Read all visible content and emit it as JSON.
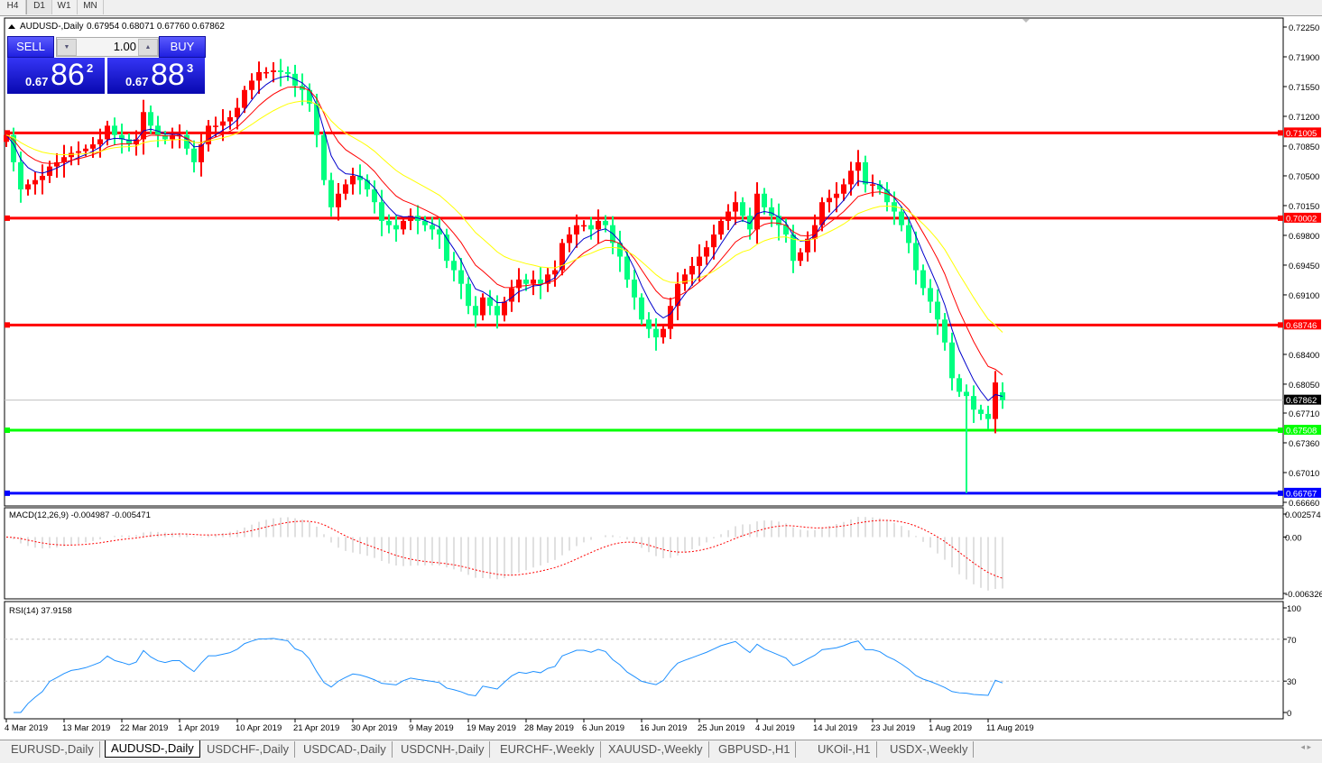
{
  "timeframes": [
    "H4",
    "D1",
    "W1",
    "MN"
  ],
  "active_timeframe": "D1",
  "header": {
    "symbol": "AUDUSD-,Daily",
    "ohlc": "0.67954 0.68071 0.67760 0.67862"
  },
  "trade_panel": {
    "sell_label": "SELL",
    "buy_label": "BUY",
    "lot": "1.00",
    "sell_prefix": "0.67",
    "sell_big": "86",
    "sell_sup": "2",
    "buy_prefix": "0.67",
    "buy_big": "88",
    "buy_sup": "3"
  },
  "colors": {
    "bull": "#ff0000",
    "bear": "#00ff80",
    "ma_fast": "#0000cc",
    "ma_mid": "#ff0000",
    "ma_slow": "#ffff00",
    "rsi": "#1e90ff",
    "macd_signal": "#ff0000",
    "macd_hist": "#c0c0c0"
  },
  "chart_data": {
    "type": "candlestick",
    "price_axis_ticks": [
      "0.72250",
      "0.71900",
      "0.71550",
      "0.71200",
      "0.70850",
      "0.70500",
      "0.70150",
      "0.69800",
      "0.69450",
      "0.69100",
      "0.68400",
      "0.68050",
      "0.67710",
      "0.67360",
      "0.67010",
      "0.66660"
    ],
    "ylim": [
      0.6666,
      0.7225
    ],
    "date_labels": [
      {
        "bar": 0,
        "label": "4 Mar 2019"
      },
      {
        "bar": 8,
        "label": "13 Mar 2019"
      },
      {
        "bar": 16,
        "label": "22 Mar 2019"
      },
      {
        "bar": 24,
        "label": "1 Apr 2019"
      },
      {
        "bar": 32,
        "label": "10 Apr 2019"
      },
      {
        "bar": 40,
        "label": "21 Apr 2019"
      },
      {
        "bar": 48,
        "label": "30 Apr 2019"
      },
      {
        "bar": 56,
        "label": "9 May 2019"
      },
      {
        "bar": 64,
        "label": "19 May 2019"
      },
      {
        "bar": 72,
        "label": "28 May 2019"
      },
      {
        "bar": 80,
        "label": "6 Jun 2019"
      },
      {
        "bar": 88,
        "label": "16 Jun 2019"
      },
      {
        "bar": 96,
        "label": "25 Jun 2019"
      },
      {
        "bar": 104,
        "label": "4 Jul 2019"
      },
      {
        "bar": 112,
        "label": "14 Jul 2019"
      },
      {
        "bar": 120,
        "label": "23 Jul 2019"
      },
      {
        "bar": 128,
        "label": "1 Aug 2019"
      },
      {
        "bar": 136,
        "label": "11 Aug 2019"
      }
    ],
    "first_open": 0.709,
    "closes": [
      0.7098,
      0.7066,
      0.7034,
      0.704,
      0.7045,
      0.705,
      0.7061,
      0.7066,
      0.7072,
      0.7077,
      0.7079,
      0.7082,
      0.7087,
      0.7093,
      0.7109,
      0.7098,
      0.7093,
      0.7087,
      0.7093,
      0.7125,
      0.7109,
      0.7098,
      0.7093,
      0.7098,
      0.7098,
      0.7082,
      0.7066,
      0.7087,
      0.7109,
      0.7109,
      0.7114,
      0.7119,
      0.713,
      0.7151,
      0.7162,
      0.7172,
      0.7172,
      0.7174,
      0.7172,
      0.717,
      0.7156,
      0.7151,
      0.7135,
      0.7098,
      0.7045,
      0.7013,
      0.7029,
      0.704,
      0.705,
      0.7045,
      0.7034,
      0.7019,
      0.6997,
      0.6992,
      0.6987,
      0.6997,
      0.7003,
      0.6997,
      0.6992,
      0.6987,
      0.6981,
      0.695,
      0.6939,
      0.6923,
      0.6897,
      0.6886,
      0.6907,
      0.6897,
      0.6886,
      0.6902,
      0.6918,
      0.6928,
      0.6923,
      0.6928,
      0.6923,
      0.6934,
      0.6939,
      0.6971,
      0.6981,
      0.6992,
      0.6992,
      0.6987,
      0.6997,
      0.6992,
      0.6971,
      0.6955,
      0.6928,
      0.6907,
      0.6881,
      0.687,
      0.686,
      0.687,
      0.6897,
      0.6923,
      0.6934,
      0.6944,
      0.6955,
      0.6966,
      0.6981,
      0.6997,
      0.7008,
      0.7019,
      0.7003,
      0.6987,
      0.7029,
      0.7013,
      0.7003,
      0.6992,
      0.6981,
      0.695,
      0.696,
      0.6976,
      0.6992,
      0.7019,
      0.7024,
      0.7029,
      0.704,
      0.7056,
      0.7066,
      0.704,
      0.704,
      0.7034,
      0.7019,
      0.7008,
      0.6992,
      0.6971,
      0.6939,
      0.6918,
      0.6902,
      0.6881,
      0.6854,
      0.6812,
      0.6796,
      0.6791,
      0.6775,
      0.677,
      0.6764,
      0.6807,
      0.67862
    ],
    "last_bar": {
      "open": 0.67954,
      "high": 0.68071,
      "low": 0.6776,
      "close": 0.67862
    },
    "spike_low": {
      "bar": 133,
      "low": 0.6677
    },
    "horizontal_lines": [
      {
        "price": 0.71005,
        "label": "0.71005",
        "color": "#ff0000"
      },
      {
        "price": 0.70002,
        "label": "0.70002",
        "color": "#ff0000"
      },
      {
        "price": 0.68746,
        "label": "0.68746",
        "color": "#ff0000"
      },
      {
        "price": 0.67508,
        "label": "0.67508",
        "color": "#00ff00"
      },
      {
        "price": 0.66767,
        "label": "0.66767",
        "color": "#0000ff"
      }
    ],
    "current_price": {
      "price": 0.67862,
      "label": "0.67862"
    },
    "moving_averages": [
      5,
      10,
      20
    ],
    "macd": {
      "title": "MACD(12,26,9) -0.004987 -0.005471",
      "ticks": [
        "0.002574",
        "0.00",
        "-0.006326"
      ],
      "ylim": [
        -0.006326,
        0.002574
      ]
    },
    "rsi": {
      "title": "RSI(14) 37.9158",
      "ticks": [
        "100",
        "70",
        "30",
        "0"
      ],
      "levels": [
        70,
        30
      ]
    }
  },
  "tabs": [
    "EURUSD-,Daily",
    "AUDUSD-,Daily",
    "USDCHF-,Daily",
    "USDCAD-,Daily",
    "USDCNH-,Daily",
    "EURCHF-,Weekly",
    "XAUUSD-,Weekly",
    "GBPUSD-,H1",
    "UKOil-,H1",
    "USDX-,Weekly"
  ],
  "active_tab": "AUDUSD-,Daily",
  "tab_nav": "◂ ▸"
}
